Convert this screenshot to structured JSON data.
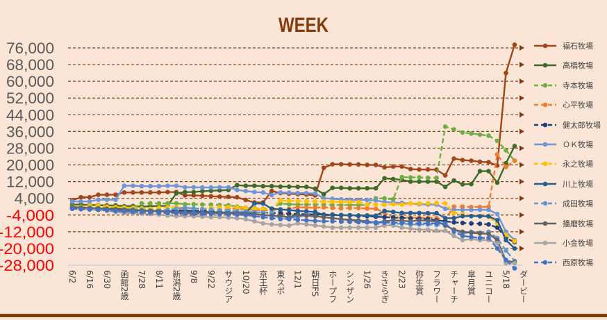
{
  "chart_data": {
    "type": "line",
    "title": "WEEK",
    "xlabel": "",
    "ylabel": "",
    "ylim": [
      -28000,
      76000
    ],
    "yticks": [
      76000,
      68000,
      60000,
      52000,
      44000,
      36000,
      28000,
      20000,
      12000,
      4000,
      -4000,
      -12000,
      -20000,
      -28000
    ],
    "ytick_labels": [
      "76,000",
      "68,000",
      "60,000",
      "52,000",
      "44,000",
      "36,000",
      "28,000",
      "20,000",
      "12,000",
      "4,000",
      "-4,000",
      "-12,000",
      "-20,000",
      "-28,000"
    ],
    "grid": true,
    "legend_position": "right",
    "x_tick_labels": [
      "6/2",
      "6/16",
      "6/30",
      "函館2歳",
      "7/28",
      "8/11",
      "新潟2歳",
      "9/8",
      "9/22",
      "サウジア",
      "10/20",
      "京王杯",
      "東スポ",
      "12/1",
      "朝日FS",
      "ホープフ",
      "シンザン",
      "1/26",
      "きさらぎ",
      "2/23",
      "弥生賞",
      "フラワー",
      "チャーチ",
      "皐月賞",
      "ユニコー",
      "5/18",
      "ダービー"
    ],
    "label_every": 2,
    "point_count": 52,
    "series": [
      {
        "name": "福石牧場",
        "color": "#a0461a",
        "dashed": false,
        "values": [
          3100,
          4500,
          4500,
          5700,
          5700,
          5700,
          6800,
          6800,
          6800,
          6800,
          6800,
          7000,
          7000,
          5400,
          5400,
          5200,
          5000,
          4800,
          4700,
          4500,
          3200,
          2000,
          2000,
          7500,
          6500,
          6200,
          6000,
          5800,
          5400,
          18600,
          20300,
          20300,
          20200,
          20200,
          20000,
          20000,
          18800,
          19200,
          19200,
          18000,
          17800,
          17800,
          17700,
          15000,
          23000,
          22300,
          22000,
          21500,
          21300,
          19700,
          64000,
          77500
        ]
      },
      {
        "name": "高橋牧場",
        "color": "#3e6b2a",
        "dashed": false,
        "values": [
          1000,
          1000,
          800,
          700,
          600,
          600,
          200,
          300,
          0,
          200,
          300,
          400,
          6400,
          7000,
          7000,
          7400,
          7600,
          7800,
          8000,
          10300,
          10000,
          10000,
          9800,
          9800,
          9600,
          9600,
          9500,
          9500,
          8600,
          6000,
          9000,
          9000,
          8800,
          8800,
          8800,
          8800,
          13600,
          13200,
          12800,
          12000,
          12000,
          12000,
          12000,
          9500,
          12500,
          10700,
          10800,
          17000,
          17000,
          11500,
          20800,
          29000
        ]
      },
      {
        "name": "寺本牧場",
        "color": "#70ad47",
        "dashed": true,
        "values": [
          -300,
          -300,
          -200,
          -500,
          -500,
          -600,
          -300,
          -700,
          1600,
          1600,
          1600,
          1600,
          1600,
          1200,
          1200,
          1000,
          1000,
          800,
          700,
          0,
          -500,
          -800,
          -1000,
          -900,
          1500,
          1200,
          1000,
          1000,
          1000,
          1000,
          800,
          800,
          800,
          800,
          800,
          4000,
          4000,
          3500,
          14200,
          14000,
          14000,
          13800,
          13800,
          38300,
          37000,
          35500,
          35000,
          34500,
          34000,
          31500,
          27000,
          22000
        ]
      },
      {
        "name": "心平牧場",
        "color": "#ed7d31",
        "dashed": true,
        "values": [
          -500,
          -600,
          -800,
          -1000,
          -1000,
          -1200,
          -1500,
          -1600,
          -1800,
          -2000,
          -1800,
          -1500,
          -1500,
          -1800,
          -2000,
          -2000,
          -1800,
          -1500,
          -1200,
          -1000,
          -1300,
          -1600,
          -1800,
          -1500,
          -2500,
          -1000,
          -300,
          -400,
          -500,
          -300,
          -600,
          -800,
          -700,
          -700,
          -900,
          -1000,
          -2800,
          -5200,
          -5200,
          -5300,
          -5300,
          -5400,
          -5500,
          -6000,
          0,
          0,
          -200,
          -200,
          -100,
          25000,
          19000,
          22000
        ]
      },
      {
        "name": "健太郎牧場",
        "color": "#1f3f7a",
        "dashed": true,
        "values": [
          -400,
          -500,
          -700,
          -800,
          -900,
          -1000,
          -1200,
          -1300,
          -1400,
          -1500,
          -1600,
          -1700,
          -1800,
          -1900,
          -2000,
          -2100,
          -2200,
          -2300,
          -2400,
          -2500,
          -2600,
          -2700,
          -2800,
          -3000,
          -3200,
          -3400,
          -3500,
          -3600,
          -3700,
          -3800,
          -3800,
          -4000,
          -4200,
          -4400,
          -4600,
          -4800,
          -5000,
          -5200,
          -5400,
          -5600,
          -5800,
          -6000,
          -6500,
          -7000,
          -7500,
          -7800,
          -8000,
          -8200,
          -8500,
          -10000,
          -15000,
          -17000
        ]
      },
      {
        "name": "ＯＫ牧場",
        "color": "#6f96d8",
        "dashed": false,
        "values": [
          2500,
          2500,
          2500,
          3300,
          3300,
          3300,
          10000,
          10000,
          9800,
          9800,
          9800,
          10000,
          10000,
          9300,
          9300,
          9200,
          9200,
          9300,
          9300,
          8000,
          7500,
          7000,
          6800,
          5500,
          6800,
          6700,
          6500,
          6500,
          6300,
          4000,
          3800,
          3500,
          3300,
          3200,
          3200,
          3000,
          2200,
          2000,
          1800,
          1500,
          1200,
          1000,
          1000,
          -1000,
          -1500,
          -1500,
          -1500,
          -1500,
          -1500,
          -3500,
          -12000,
          -16000
        ]
      },
      {
        "name": "永之牧場",
        "color": "#ffc000",
        "dashed": true,
        "values": [
          0,
          0,
          500,
          500,
          0,
          -200,
          -500,
          -500,
          -800,
          -1000,
          -500,
          -300,
          -300,
          -500,
          -800,
          -1000,
          -700,
          -300,
          -200,
          -400,
          -600,
          -1000,
          -1200,
          -1500,
          3000,
          2800,
          2700,
          2600,
          2500,
          2500,
          2400,
          2300,
          2200,
          2200,
          1000,
          1000,
          900,
          1200,
          1000,
          1500,
          1500,
          1600,
          1700,
          1500,
          -3000,
          -3500,
          -4500,
          -4500,
          -4800,
          -8000,
          -13500,
          -16500
        ]
      },
      {
        "name": "川上牧場",
        "color": "#255e91",
        "dashed": false,
        "values": [
          -400,
          -500,
          -700,
          -1000,
          -1200,
          -1300,
          -1500,
          -1700,
          -1800,
          -2000,
          -2100,
          -2200,
          -2300,
          -2400,
          -2500,
          -2500,
          -2600,
          -2700,
          -2800,
          -2900,
          -3000,
          1500,
          1500,
          -1000,
          -1300,
          -1600,
          -2000,
          -2300,
          -2500,
          -4000,
          -4000,
          -4100,
          -4100,
          -4200,
          -4200,
          -4300,
          -2000,
          -2500,
          -3000,
          -3000,
          -3000,
          -3100,
          -3100,
          -5500,
          -5500,
          -4500,
          -4500,
          -4600,
          -4600,
          -6500,
          -16000,
          -20000
        ]
      },
      {
        "name": "成田牧場",
        "color": "#5b9bd5",
        "dashed": true,
        "values": [
          -800,
          -900,
          -1000,
          -1200,
          -1300,
          -1500,
          -1400,
          -1300,
          -1500,
          -1800,
          -2000,
          -1500,
          -1000,
          -500,
          -800,
          -1200,
          -1500,
          -1800,
          -2000,
          -2200,
          -2400,
          -2600,
          -2800,
          -3000,
          -6000,
          -5500,
          -5000,
          -4000,
          -4500,
          -5000,
          -5500,
          -6000,
          -6500,
          -7000,
          -7500,
          -8000,
          -9000,
          -8500,
          -8000,
          -8500,
          -8500,
          -8500,
          -8800,
          -9000,
          -11000,
          -13000,
          -12000,
          -12500,
          -12000,
          -15000,
          -21000,
          -26000
        ]
      },
      {
        "name": "播磨牧場",
        "color": "#636363",
        "dashed": false,
        "values": [
          -200,
          -400,
          -600,
          -800,
          -1000,
          -1200,
          -1500,
          -1700,
          -1900,
          -2100,
          -2300,
          -2500,
          -2600,
          -2700,
          -2800,
          -2900,
          -3000,
          -3000,
          -3100,
          -3200,
          -3300,
          -3500,
          -4000,
          -4300,
          -4600,
          -5000,
          -4000,
          -4300,
          -4600,
          -5000,
          -5500,
          -6000,
          -6300,
          -6600,
          -7000,
          -7700,
          -7000,
          -6500,
          -6800,
          -7000,
          -6500,
          -6800,
          -7000,
          -9000,
          -11000,
          -12000,
          -12500,
          -12800,
          -13000,
          -16000,
          -26000,
          -26500
        ]
      },
      {
        "name": "小金牧場",
        "color": "#a5a5a5",
        "dashed": false,
        "values": [
          -1000,
          -1200,
          -1400,
          -1600,
          -2000,
          -2500,
          -3000,
          -3100,
          -3300,
          -3500,
          -3800,
          -4200,
          -4500,
          -4500,
          -4600,
          -4800,
          -5000,
          -5000,
          -5200,
          -5500,
          -6000,
          -7000,
          -8000,
          -8500,
          -8800,
          -9000,
          -8000,
          -8500,
          -9000,
          -9500,
          -10000,
          -10000,
          -10000,
          -10000,
          -10000,
          -10000,
          -9000,
          -9000,
          -10000,
          -10500,
          -11000,
          -11000,
          -11500,
          -11500,
          -14000,
          -16000,
          -15500,
          -16000,
          -16000,
          -17500,
          -27000,
          -27000
        ]
      },
      {
        "name": "西原牧場",
        "color": "#4472c4",
        "dashed": true,
        "values": [
          -1000,
          -1200,
          -1300,
          -1500,
          -1700,
          -2000,
          -2200,
          -2400,
          -2600,
          -2800,
          -3000,
          -3000,
          -3100,
          -3200,
          -3300,
          -3400,
          -3500,
          -3600,
          -3700,
          -3800,
          -4000,
          -4500,
          -5000,
          -5500,
          -5800,
          -6000,
          -6300,
          -6500,
          -6800,
          -7000,
          -7000,
          -7200,
          -7300,
          -7400,
          -7500,
          -7500,
          -7600,
          -7700,
          -7800,
          -7900,
          -8000,
          -8000,
          -8000,
          -8000,
          -12000,
          -14000,
          -14500,
          -15000,
          -15000,
          -20000,
          -25500,
          -29500
        ]
      }
    ]
  },
  "colors": {
    "background": "#fbe5d6",
    "title": "#843c0c",
    "grid": "#843c0c",
    "positive_tick": "#595959",
    "negative_tick": "#ff0000"
  }
}
